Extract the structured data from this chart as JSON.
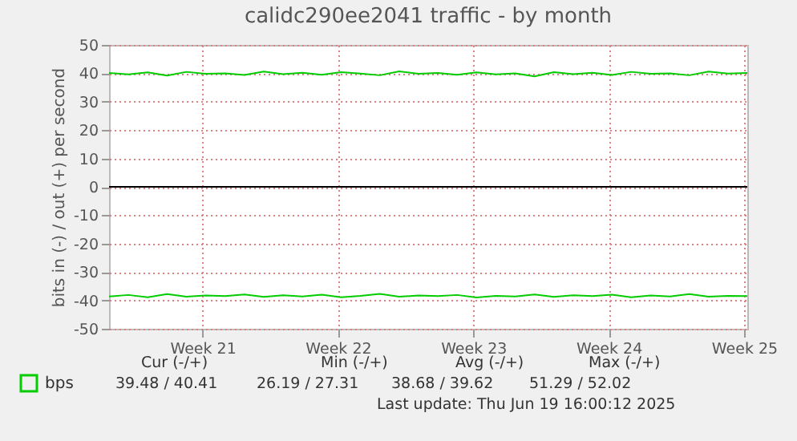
{
  "chart_data": {
    "type": "line",
    "title": "calidc290ee2041 traffic - by month",
    "ylabel": "bits in (-) / out (+) per second",
    "x": [
      "2025-05-17T16:00",
      "2025-05-18T16:00",
      "2025-05-19T16:00",
      "2025-05-20T16:00",
      "2025-05-21T16:00",
      "2025-05-22T16:00",
      "2025-05-23T16:00",
      "2025-05-24T16:00",
      "2025-05-25T16:00",
      "2025-05-26T16:00",
      "2025-05-27T16:00",
      "2025-05-28T16:00",
      "2025-05-29T16:00",
      "2025-05-30T16:00",
      "2025-05-31T16:00",
      "2025-06-01T16:00",
      "2025-06-02T16:00",
      "2025-06-03T16:00",
      "2025-06-04T16:00",
      "2025-06-05T16:00",
      "2025-06-06T16:00",
      "2025-06-07T16:00",
      "2025-06-08T16:00",
      "2025-06-09T16:00",
      "2025-06-10T16:00",
      "2025-06-11T16:00",
      "2025-06-12T16:00",
      "2025-06-13T16:00",
      "2025-06-14T16:00",
      "2025-06-15T16:00",
      "2025-06-16T16:00",
      "2025-06-17T16:00",
      "2025-06-18T16:00",
      "2025-06-19T16:00"
    ],
    "series": [
      {
        "name": "bps",
        "color": "#00cc00",
        "values": [
          40.1,
          39.6,
          40.3,
          39.2,
          40.5,
          39.8,
          40.0,
          39.4,
          40.6,
          39.7,
          40.2,
          39.5,
          40.4,
          39.9,
          39.3,
          40.7,
          39.8,
          40.1,
          39.5,
          40.3,
          39.6,
          40.0,
          38.9,
          40.4,
          39.7,
          40.2,
          39.4,
          40.5,
          39.8,
          40.0,
          39.3,
          40.6,
          39.9,
          40.1
        ]
      },
      {
        "color": "#00cc00",
        "values": [
          -38.6,
          -38.1,
          -38.9,
          -37.8,
          -38.7,
          -38.3,
          -38.5,
          -37.9,
          -38.8,
          -38.2,
          -38.6,
          -38.0,
          -38.9,
          -38.4,
          -37.7,
          -38.7,
          -38.3,
          -38.5,
          -38.1,
          -39.0,
          -38.4,
          -38.6,
          -37.9,
          -38.8,
          -38.2,
          -38.5,
          -38.0,
          -38.9,
          -38.3,
          -38.6,
          -37.8,
          -38.7,
          -38.4,
          -38.5
        ]
      }
    ],
    "xlim": [
      "2025-05-17T16:00",
      "2025-06-19T16:00"
    ],
    "xticks": [
      {
        "value": "2025-05-22T12:00",
        "label": "Week 21"
      },
      {
        "value": "2025-05-29T12:00",
        "label": "Week 22"
      },
      {
        "value": "2025-06-05T12:00",
        "label": "Week 23"
      },
      {
        "value": "2025-06-12T12:00",
        "label": "Week 24"
      },
      {
        "value": "2025-06-19T12:00",
        "label": "Week 25"
      }
    ],
    "ylim": [
      -50,
      50
    ],
    "yticks": [
      -50,
      -40,
      -30,
      -20,
      -10,
      0,
      10,
      20,
      30,
      40,
      50
    ],
    "ref_lines": [
      {
        "axis": "y",
        "value": 0,
        "color": "#000000"
      }
    ],
    "grid": true,
    "legend": "bottom left",
    "annotations": [
      "Cur (-/+)",
      "Min (-/+)",
      "Avg (-/+)",
      "Max (-/+)",
      "39.48 / 40.41",
      "26.19 / 27.31",
      "38.68 / 39.62",
      "51.29 / 52.02",
      "Last update: Thu Jun 19 16:00:12 2025"
    ]
  }
}
